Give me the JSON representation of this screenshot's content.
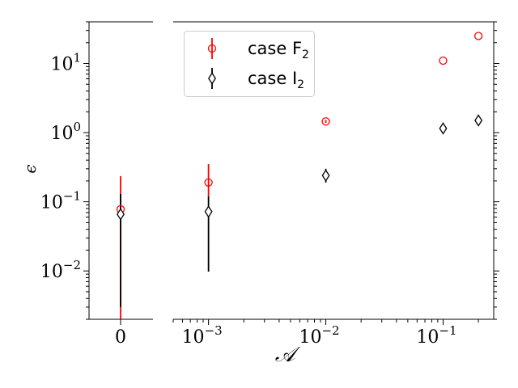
{
  "chart_data": {
    "type": "scatter",
    "title": "",
    "xlabel": "𝒜",
    "ylabel": "ϵ",
    "xscale": "log",
    "yscale": "log",
    "ylim": [
      0.002,
      40
    ],
    "xlim_main": [
      0.0005,
      0.27
    ],
    "broken_axis": true,
    "left_panel_x_tick": "0",
    "x_ticks": [
      {
        "value": 0.001,
        "base": "10",
        "exp": "−3"
      },
      {
        "value": 0.01,
        "base": "10",
        "exp": "−2"
      },
      {
        "value": 0.1,
        "base": "10",
        "exp": "−1"
      }
    ],
    "y_ticks": [
      {
        "value": 10,
        "base": "10",
        "exp": "1"
      },
      {
        "value": 1,
        "base": "10",
        "exp": "0"
      },
      {
        "value": 0.1,
        "base": "10",
        "exp": "−1"
      },
      {
        "value": 0.01,
        "base": "10",
        "exp": "−2"
      }
    ],
    "legend_position": "upper-left",
    "grid": false,
    "series": [
      {
        "name": "case F₂",
        "legend_base": "case F",
        "legend_sub": "2",
        "color": "#ff0000",
        "marker": "circle",
        "points": [
          {
            "x": 0,
            "y": 0.078,
            "ylow": 0.002,
            "yhigh": 0.235
          },
          {
            "x": 0.001,
            "y": 0.19,
            "ylow": 0.12,
            "yhigh": 0.35
          },
          {
            "x": 0.01,
            "y": 1.45,
            "ylow": 1.38,
            "yhigh": 1.52
          },
          {
            "x": 0.1,
            "y": 11.0
          },
          {
            "x": 0.2,
            "y": 25.0
          }
        ]
      },
      {
        "name": "case I₂",
        "legend_base": "case I",
        "legend_sub": "2",
        "color": "#000000",
        "marker": "diamond",
        "points": [
          {
            "x": 0,
            "y": 0.066,
            "ylow": 0.003,
            "yhigh": 0.13
          },
          {
            "x": 0.001,
            "y": 0.072,
            "ylow": 0.0098,
            "yhigh": 0.12
          },
          {
            "x": 0.01,
            "y": 0.24,
            "ylow": 0.19,
            "yhigh": 0.3
          },
          {
            "x": 0.1,
            "y": 1.15,
            "ylow": 1.05,
            "yhigh": 1.25
          },
          {
            "x": 0.2,
            "y": 1.5,
            "ylow": 1.4,
            "yhigh": 1.6
          }
        ]
      }
    ]
  }
}
